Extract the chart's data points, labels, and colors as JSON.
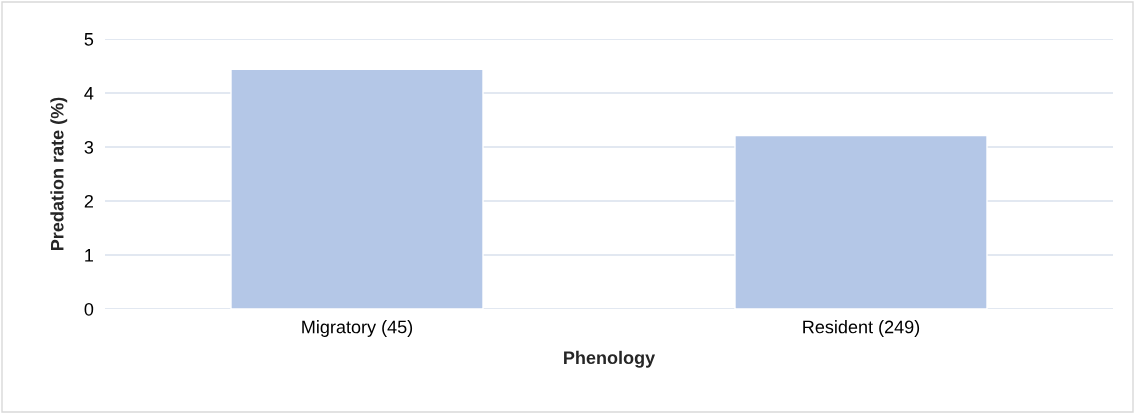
{
  "chart_data": {
    "type": "bar",
    "xlabel": "Phenology",
    "ylabel": "Predation rate (%)",
    "categories": [
      "Migratory (45)",
      "Resident (249)"
    ],
    "values": [
      4.44,
      3.21
    ],
    "color": "#b4c7e7",
    "ylim": [
      0,
      5
    ],
    "yticks": [
      0,
      1,
      2,
      3,
      4,
      5
    ],
    "grid": "y"
  }
}
